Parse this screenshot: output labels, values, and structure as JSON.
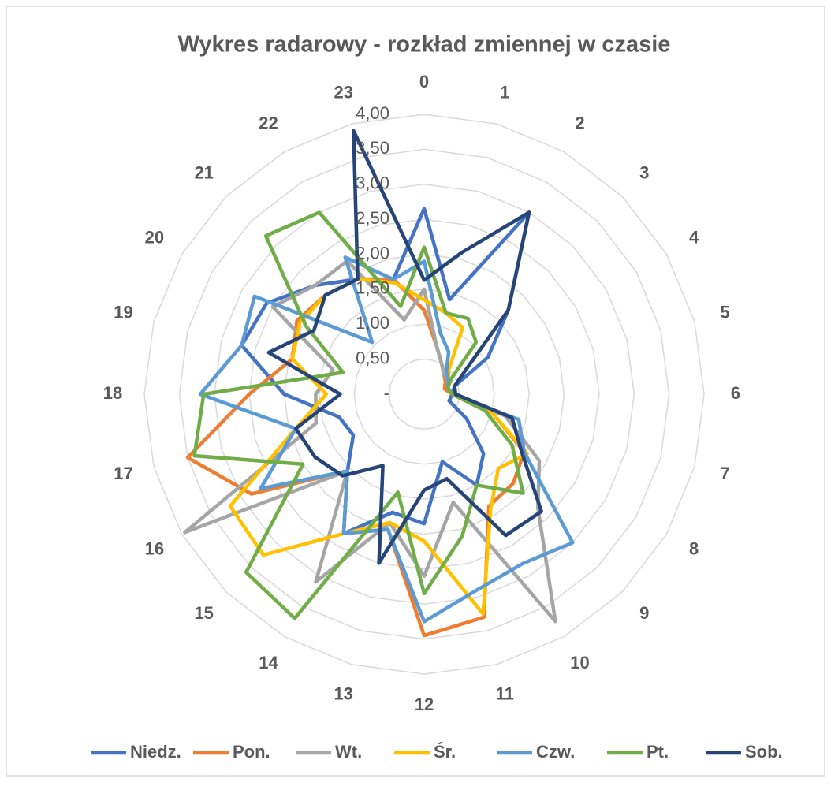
{
  "chart_data": {
    "type": "radar",
    "title": "Wykres radarowy - rozkład zmiennej w czasie",
    "categories": [
      "0",
      "1",
      "2",
      "3",
      "4",
      "5",
      "6",
      "7",
      "8",
      "9",
      "10",
      "11",
      "12",
      "13",
      "14",
      "15",
      "16",
      "17",
      "18",
      "19",
      "20",
      "21",
      "22",
      "23"
    ],
    "ylim": [
      0,
      4
    ],
    "yticks": [
      {
        "value": 0,
        "label": "-"
      },
      {
        "value": 0.5,
        "label": "0,50"
      },
      {
        "value": 1,
        "label": "1,00"
      },
      {
        "value": 1.5,
        "label": "1,50"
      },
      {
        "value": 2,
        "label": "2,00"
      },
      {
        "value": 2.5,
        "label": "2,50"
      },
      {
        "value": 3,
        "label": "3,00"
      },
      {
        "value": 3.5,
        "label": "3,50"
      },
      {
        "value": 4,
        "label": "4,00"
      }
    ],
    "grid": true,
    "legend": "bottom",
    "series": [
      {
        "name": "Niedz.",
        "color": "#4472C4",
        "values": [
          2.65,
          1.4,
          3.0,
          1.7,
          1.05,
          0.45,
          0.4,
          0.37,
          0.7,
          1.2,
          1.5,
          1.0,
          1.85,
          1.75,
          2.3,
          1.55,
          1.17,
          1.26,
          2.0,
          2.7,
          2.6,
          2.2,
          1.9,
          1.7
        ]
      },
      {
        "name": "Pon.",
        "color": "#ED7D31",
        "values": [
          1.2,
          0.7,
          0.5,
          0.4,
          0.35,
          0.3,
          0.4,
          1.0,
          1.65,
          1.8,
          1.85,
          3.3,
          3.45,
          2.0,
          2.3,
          1.55,
          2.85,
          3.5,
          2.5,
          1.95,
          2.1,
          2.0,
          1.9,
          1.7
        ]
      },
      {
        "name": "Wt.",
        "color": "#A5A5A5",
        "values": [
          1.5,
          0.7,
          0.5,
          0.4,
          0.4,
          0.35,
          0.4,
          1.2,
          1.9,
          2.3,
          3.75,
          1.6,
          2.6,
          1.9,
          3.1,
          1.55,
          3.95,
          1.6,
          1.55,
          1.35,
          2.5,
          2.2,
          2.2,
          1.1
        ]
      },
      {
        "name": "Śr.",
        "color": "#FFC000",
        "values": [
          1.35,
          1.2,
          1.1,
          0.5,
          0.4,
          0.35,
          0.4,
          1.0,
          1.7,
          1.5,
          1.9,
          3.25,
          2.1,
          1.9,
          2.3,
          3.25,
          3.2,
          1.9,
          1.4,
          1.95,
          2.05,
          2.0,
          1.9,
          1.65
        ]
      },
      {
        "name": "Czw.",
        "color": "#5B9BD5",
        "values": [
          1.9,
          0.9,
          0.7,
          0.45,
          0.4,
          0.35,
          0.4,
          1.4,
          1.65,
          3.0,
          2.8,
          2.9,
          3.25,
          2.0,
          2.3,
          1.55,
          2.7,
          1.9,
          3.2,
          2.7,
          2.8,
          1.05,
          2.26,
          1.7
        ]
      },
      {
        "name": "Pt.",
        "color": "#70AD47",
        "values": [
          2.1,
          1.2,
          1.25,
          1.05,
          0.45,
          0.35,
          0.4,
          0.9,
          1.45,
          2.0,
          1.5,
          2.1,
          2.85,
          1.45,
          3.7,
          3.6,
          2.0,
          3.4,
          3.15,
          1.2,
          1.95,
          3.2,
          3.0,
          1.3
        ]
      },
      {
        "name": "Sob.",
        "color": "#264478",
        "values": [
          1.63,
          2.1,
          3.0,
          1.7,
          0.68,
          0.45,
          0.45,
          1.3,
          1.6,
          2.37,
          2.33,
          1.25,
          1.37,
          2.5,
          1.18,
          1.65,
          1.8,
          1.9,
          1.2,
          2.3,
          1.82,
          2.0,
          1.9,
          3.9
        ]
      }
    ]
  }
}
